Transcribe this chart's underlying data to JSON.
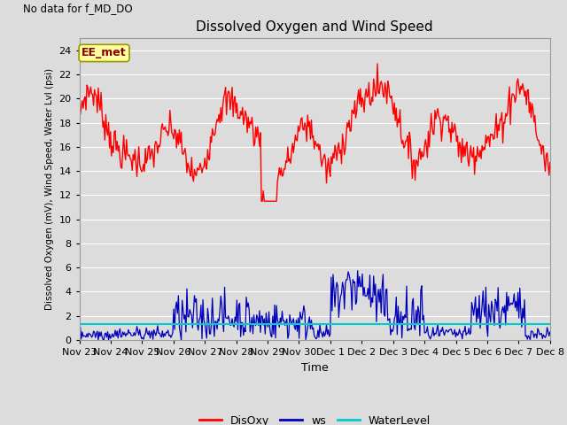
{
  "title": "Dissolved Oxygen and Wind Speed",
  "subtitle": "No data for f_MD_DO",
  "xlabel": "Time",
  "ylabel": "Dissolved Oxygen (mV), Wind Speed, Water Lvl (psi)",
  "annotation": "EE_met",
  "background_color": "#dcdcdc",
  "plot_bg_color": "#dcdcdc",
  "fig_facecolor": "#dcdcdc",
  "ylim": [
    0,
    25
  ],
  "yticks": [
    0,
    2,
    4,
    6,
    8,
    10,
    12,
    14,
    16,
    18,
    20,
    22,
    24
  ],
  "xtick_labels": [
    "Nov 23",
    "Nov 24",
    "Nov 25",
    "Nov 26",
    "Nov 27",
    "Nov 28",
    "Nov 29",
    "Nov 30",
    "Dec 1",
    "Dec 2",
    "Dec 3",
    "Dec 4",
    "Dec 5",
    "Dec 6",
    "Dec 7",
    "Dec 8"
  ],
  "disoxy_color": "#ff0000",
  "ws_color": "#0000bb",
  "wl_color": "#00cccc",
  "legend_labels": [
    "DisOxy",
    "ws",
    "WaterLevel"
  ],
  "water_level_value": 1.35,
  "num_points": 500
}
